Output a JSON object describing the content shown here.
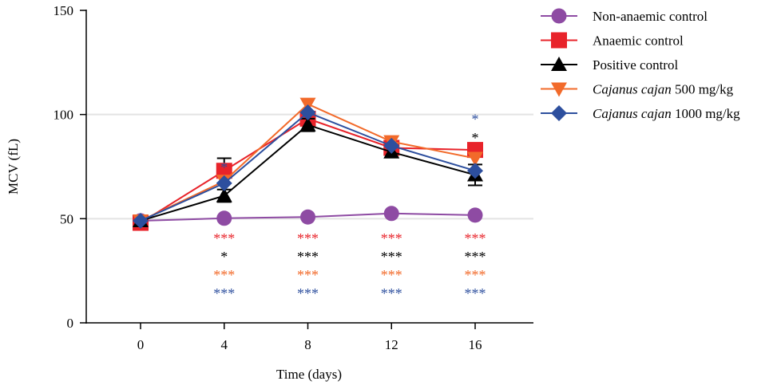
{
  "chart_data": {
    "type": "line",
    "xlabel": "Time (days)",
    "ylabel": "MCV (fL)",
    "x": [
      0,
      4,
      8,
      12,
      16
    ],
    "xticks": [
      "0",
      "4",
      "8",
      "12",
      "16"
    ],
    "yticks": [
      "0",
      "50",
      "100",
      "150"
    ],
    "ylim": [
      0,
      150
    ],
    "grid": "horizontal at 50 and 100",
    "legend_position": "top-right",
    "series": [
      {
        "name": "Non-anaemic control",
        "name_italic": "",
        "marker": "circle",
        "color": "#8e4ba3",
        "values": [
          49,
          50.2,
          50.8,
          52.5,
          51.7
        ],
        "errors": [
          0,
          0,
          0,
          0,
          0
        ]
      },
      {
        "name": "Anaemic control",
        "name_italic": "",
        "marker": "square",
        "color": "#e8232a",
        "values": [
          48,
          73,
          98,
          84,
          83
        ],
        "errors": [
          0,
          6,
          0,
          0,
          0
        ]
      },
      {
        "name": "Positive control",
        "name_italic": "",
        "marker": "triangle-up",
        "color": "#000000",
        "values": [
          49,
          61,
          95,
          82,
          71
        ],
        "errors": [
          0,
          3,
          3,
          0,
          5
        ]
      },
      {
        "name": " 500 mg/kg",
        "name_italic": "Cajanus cajan",
        "marker": "triangle-down",
        "color": "#f26a2a",
        "values": [
          49,
          68,
          105,
          87,
          79
        ],
        "errors": [
          0,
          0,
          0,
          0,
          0
        ]
      },
      {
        "name": " 1000 mg/kg",
        "name_italic": "Cajanus cajan",
        "marker": "diamond",
        "color": "#2d4f9e",
        "values": [
          49,
          67,
          101,
          85,
          73
        ],
        "errors": [
          0,
          0,
          0,
          0,
          0
        ]
      }
    ],
    "annotations_above": [
      {
        "x": 4,
        "value": 77,
        "text": "*",
        "color": "#2d4f9e"
      },
      {
        "x": 16,
        "value": 100,
        "text": "*",
        "color": "#2d4f9e"
      },
      {
        "x": 16,
        "value": 91,
        "text": "*",
        "color": "#000000"
      }
    ],
    "annotations_below": [
      {
        "x": 4,
        "rows": [
          {
            "text": "***",
            "color": "#e8232a"
          },
          {
            "text": "*",
            "color": "#000000"
          },
          {
            "text": "***",
            "color": "#f26a2a"
          },
          {
            "text": "***",
            "color": "#2d4f9e"
          }
        ]
      },
      {
        "x": 8,
        "rows": [
          {
            "text": "***",
            "color": "#e8232a"
          },
          {
            "text": "***",
            "color": "#000000"
          },
          {
            "text": "***",
            "color": "#f26a2a"
          },
          {
            "text": "***",
            "color": "#2d4f9e"
          }
        ]
      },
      {
        "x": 12,
        "rows": [
          {
            "text": "***",
            "color": "#e8232a"
          },
          {
            "text": "***",
            "color": "#000000"
          },
          {
            "text": "***",
            "color": "#f26a2a"
          },
          {
            "text": "***",
            "color": "#2d4f9e"
          }
        ]
      },
      {
        "x": 16,
        "rows": [
          {
            "text": "***",
            "color": "#e8232a"
          },
          {
            "text": "***",
            "color": "#000000"
          },
          {
            "text": "***",
            "color": "#f26a2a"
          },
          {
            "text": "***",
            "color": "#2d4f9e"
          }
        ]
      }
    ]
  }
}
